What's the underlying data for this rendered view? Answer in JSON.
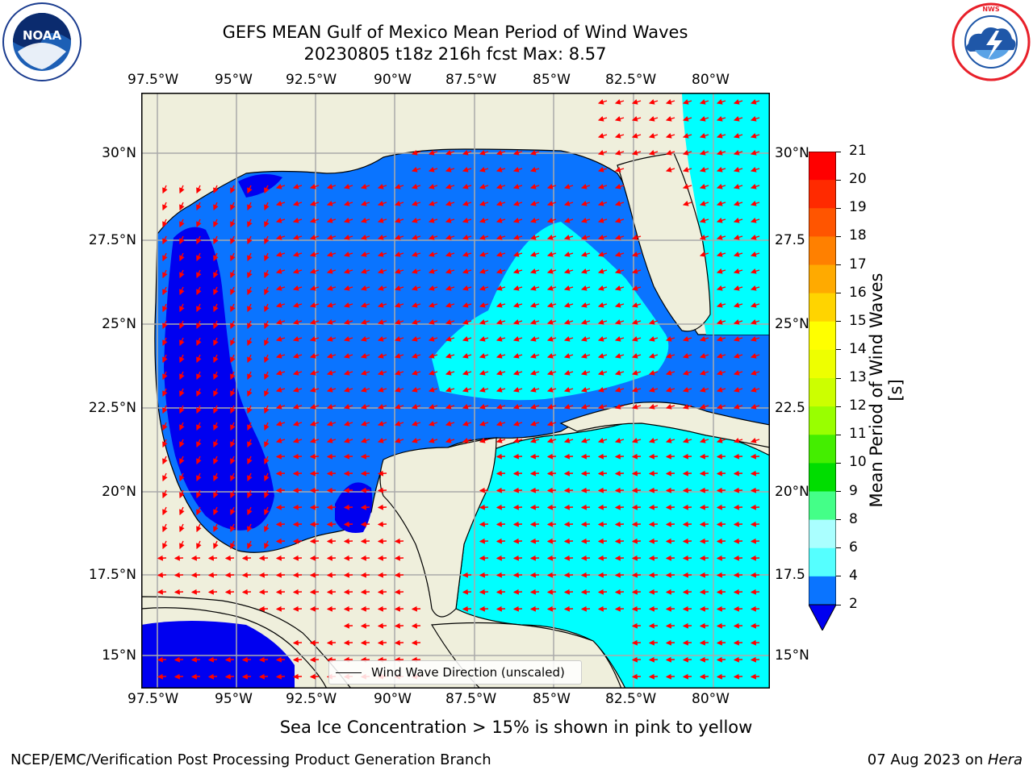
{
  "title": {
    "line1": "GEFS MEAN Gulf of Mexico Mean Period of Wind Waves",
    "line2": "20230805 t18z 216h fcst   Max: 8.57"
  },
  "logos": {
    "noaa_text": "NOAA",
    "noaa_ring": "NATIONAL OCEANIC AND ATMOSPHERIC ADMINISTRATION · U.S. DEPARTMENT OF COMMERCE",
    "nws_ring": "NATIONAL WEATHER SERVICE"
  },
  "map": {
    "lon_labels": [
      "97.5°W",
      "95°W",
      "92.5°W",
      "90°W",
      "87.5°W",
      "85°W",
      "82.5°W",
      "80°W"
    ],
    "lat_labels_left": [
      "30°N",
      "27.5°N",
      "25°N",
      "22.5°N",
      "20°N",
      "17.5°N",
      "15°N"
    ],
    "lat_labels_right": [
      "30°N",
      "27.5",
      "25°N",
      "22.5",
      "20°N",
      "17.5",
      "15°N"
    ],
    "legend_label": "Wind Wave Direction (unscaled)",
    "colors": {
      "land": "#efefdc",
      "period_2_4": "#0a74ff",
      "period_lt_2": "#0000f0",
      "period_4_6": "#00ffff",
      "period_6_8": "#55ffff",
      "arrows": "#ff0000",
      "grid": "#aaaaaa"
    }
  },
  "colorbar": {
    "label": "Mean Period of Wind Waves [s]",
    "ticks": [
      "21",
      "20",
      "19",
      "18",
      "17",
      "16",
      "15",
      "14",
      "13",
      "12",
      "11",
      "10",
      "9",
      "8",
      "6",
      "4",
      "2"
    ],
    "colors": [
      "#ff0000",
      "#ff2a00",
      "#ff5500",
      "#ff8000",
      "#ffaa00",
      "#ffd400",
      "#ffff00",
      "#eeff00",
      "#ccff00",
      "#99ff00",
      "#44ee00",
      "#00dd00",
      "#44ff88",
      "#aaffff",
      "#55ffff",
      "#00ffff",
      "#0a74ff"
    ],
    "extend_min_color": "#0000f0"
  },
  "subtitle": "Sea Ice Concentration > 15% is shown in pink to yellow",
  "footer": {
    "left": "NCEP/EMC/Verification Post Processing Product Generation Branch",
    "right_date": "07 Aug 2023 on ",
    "right_host": "Hera"
  }
}
